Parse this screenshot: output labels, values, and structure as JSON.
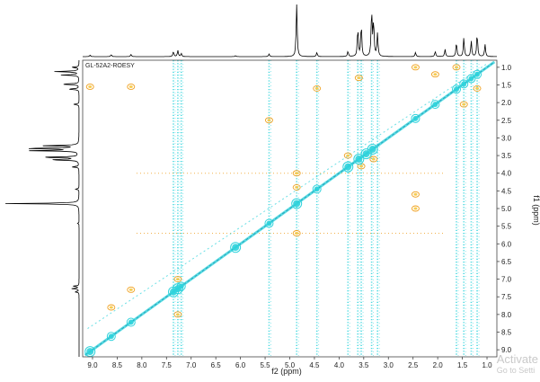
{
  "chart_data": {
    "type": "heatmap",
    "subtype": "2D NMR contour plot",
    "title": "GL-52A2-ROESY",
    "xlabel": "f2 (ppm)",
    "ylabel": "f1 (ppm)",
    "xlim": [
      9.2,
      0.8
    ],
    "ylim": [
      0.8,
      9.2
    ],
    "x_reversed": true,
    "y_reversed": true,
    "x_ticks": [
      "9.0",
      "8.5",
      "8.0",
      "7.5",
      "7.0",
      "6.5",
      "6.0",
      "5.5",
      "5.0",
      "4.5",
      "4.0",
      "3.5",
      "3.0",
      "2.5",
      "2.0",
      "1.5",
      "1.0"
    ],
    "y_ticks": [
      "1.0",
      "1.5",
      "2.0",
      "2.5",
      "3.0",
      "3.5",
      "4.0",
      "4.5",
      "5.0",
      "5.5",
      "6.0",
      "6.5",
      "7.0",
      "7.5",
      "8.0",
      "8.5",
      "9.0"
    ],
    "grid": false,
    "colors": {
      "diagonal": "#2fd3dc",
      "cross_peak": "#f0a020",
      "noise": "#f5c842",
      "spectrum": "#000000"
    },
    "f2_projection_peaks": [
      {
        "ppm": 9.05,
        "h": 0.03
      },
      {
        "ppm": 8.62,
        "h": 0.04
      },
      {
        "ppm": 8.22,
        "h": 0.04
      },
      {
        "ppm": 7.36,
        "h": 0.1
      },
      {
        "ppm": 7.27,
        "h": 0.12
      },
      {
        "ppm": 7.2,
        "h": 0.06
      },
      {
        "ppm": 6.1,
        "h": 0.02
      },
      {
        "ppm": 5.42,
        "h": 0.05
      },
      {
        "ppm": 4.86,
        "h": 1.0
      },
      {
        "ppm": 4.45,
        "h": 0.08
      },
      {
        "ppm": 3.82,
        "h": 0.1
      },
      {
        "ppm": 3.62,
        "h": 0.55
      },
      {
        "ppm": 3.55,
        "h": 0.62
      },
      {
        "ppm": 3.34,
        "h": 0.9
      },
      {
        "ppm": 3.3,
        "h": 0.68
      },
      {
        "ppm": 3.22,
        "h": 0.45
      },
      {
        "ppm": 2.45,
        "h": 0.08
      },
      {
        "ppm": 2.05,
        "h": 0.1
      },
      {
        "ppm": 1.85,
        "h": 0.14
      },
      {
        "ppm": 1.62,
        "h": 0.28
      },
      {
        "ppm": 1.47,
        "h": 0.36
      },
      {
        "ppm": 1.32,
        "h": 0.3
      },
      {
        "ppm": 1.2,
        "h": 0.45
      },
      {
        "ppm": 1.04,
        "h": 0.24
      }
    ],
    "f1_projection_peaks": [
      {
        "ppm": 1.0,
        "h": 0.1
      },
      {
        "ppm": 1.12,
        "h": 0.34
      },
      {
        "ppm": 1.22,
        "h": 0.24
      },
      {
        "ppm": 1.48,
        "h": 0.26
      },
      {
        "ppm": 1.62,
        "h": 0.16
      },
      {
        "ppm": 2.05,
        "h": 0.08
      },
      {
        "ppm": 3.22,
        "h": 0.48
      },
      {
        "ppm": 3.3,
        "h": 0.8
      },
      {
        "ppm": 3.36,
        "h": 0.66
      },
      {
        "ppm": 3.55,
        "h": 0.55
      },
      {
        "ppm": 3.62,
        "h": 0.42
      },
      {
        "ppm": 3.82,
        "h": 0.1
      },
      {
        "ppm": 4.45,
        "h": 0.05
      },
      {
        "ppm": 4.86,
        "h": 1.0
      },
      {
        "ppm": 5.42,
        "h": 0.02
      },
      {
        "ppm": 7.2,
        "h": 0.08
      },
      {
        "ppm": 7.27,
        "h": 0.1
      },
      {
        "ppm": 7.36,
        "h": 0.06
      }
    ],
    "diagonal_peaks": [
      {
        "ppm": 9.05,
        "r": 4
      },
      {
        "ppm": 8.62,
        "r": 3
      },
      {
        "ppm": 8.22,
        "r": 3
      },
      {
        "ppm": 7.36,
        "r": 4
      },
      {
        "ppm": 7.27,
        "r": 4
      },
      {
        "ppm": 7.2,
        "r": 3
      },
      {
        "ppm": 6.1,
        "r": 4
      },
      {
        "ppm": 5.42,
        "r": 3
      },
      {
        "ppm": 4.86,
        "r": 4
      },
      {
        "ppm": 4.45,
        "r": 3
      },
      {
        "ppm": 3.82,
        "r": 4
      },
      {
        "ppm": 3.6,
        "r": 4
      },
      {
        "ppm": 3.45,
        "r": 4
      },
      {
        "ppm": 3.32,
        "r": 4
      },
      {
        "ppm": 2.45,
        "r": 3
      },
      {
        "ppm": 2.05,
        "r": 3
      },
      {
        "ppm": 1.62,
        "r": 3
      },
      {
        "ppm": 1.47,
        "r": 3
      },
      {
        "ppm": 1.32,
        "r": 3
      },
      {
        "ppm": 1.2,
        "r": 3
      }
    ],
    "cross_peaks": [
      {
        "f2": 9.05,
        "f1": 1.55
      },
      {
        "f2": 8.62,
        "f1": 7.8
      },
      {
        "f2": 8.22,
        "f1": 1.55
      },
      {
        "f2": 8.22,
        "f1": 7.3
      },
      {
        "f2": 7.27,
        "f1": 7.0
      },
      {
        "f2": 7.27,
        "f1": 8.0
      },
      {
        "f2": 4.86,
        "f1": 4.0
      },
      {
        "f2": 4.86,
        "f1": 4.4
      },
      {
        "f2": 4.86,
        "f1": 5.7
      },
      {
        "f2": 5.42,
        "f1": 2.5
      },
      {
        "f2": 4.45,
        "f1": 1.6
      },
      {
        "f2": 3.82,
        "f1": 3.5
      },
      {
        "f2": 3.55,
        "f1": 3.8
      },
      {
        "f2": 3.3,
        "f1": 3.6
      },
      {
        "f2": 3.6,
        "f1": 1.3
      },
      {
        "f2": 2.45,
        "f1": 4.6
      },
      {
        "f2": 2.45,
        "f1": 5.0
      },
      {
        "f2": 2.05,
        "f1": 1.2
      },
      {
        "f2": 1.47,
        "f1": 2.05
      },
      {
        "f2": 1.2,
        "f1": 1.6
      },
      {
        "f2": 1.62,
        "f1": 1.0
      },
      {
        "f2": 2.45,
        "f1": 1.0
      }
    ],
    "t1_noise_columns": [
      7.36,
      7.27,
      7.2,
      5.42,
      4.86,
      4.45,
      3.82,
      3.62,
      3.55,
      3.34,
      3.22,
      1.62,
      1.47,
      1.32,
      1.2
    ],
    "noise_rows": [
      4.0,
      5.7
    ]
  },
  "watermark": {
    "line1": "Activate",
    "line2": "Go to Setti"
  }
}
